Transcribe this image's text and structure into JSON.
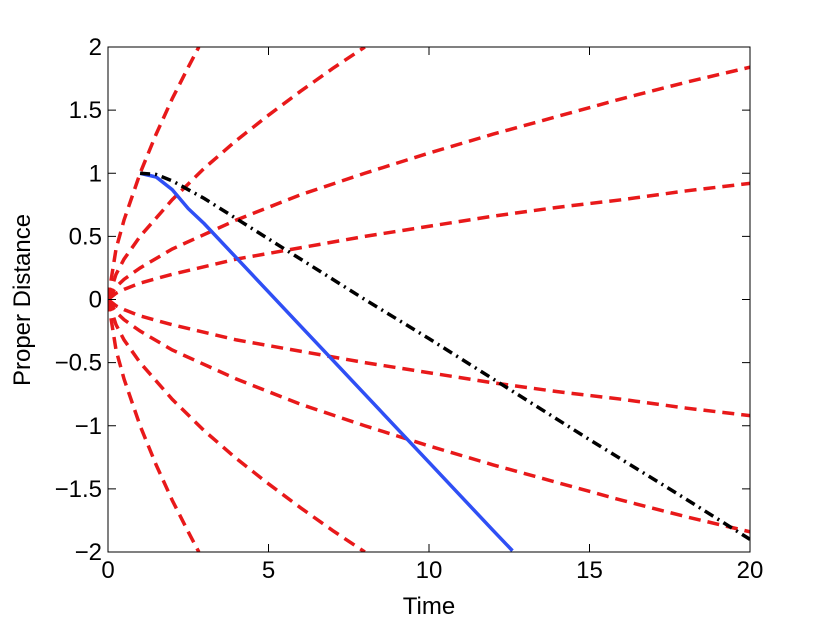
{
  "chart_data": {
    "type": "line",
    "xlabel": "Time",
    "ylabel": "Proper Distance",
    "xlim": [
      0,
      20
    ],
    "ylim": [
      -2,
      2
    ],
    "xticks": [
      0,
      5,
      10,
      15,
      20
    ],
    "yticks": [
      {
        "value": -2,
        "label": "−2"
      },
      {
        "value": -1.5,
        "label": "−1.5"
      },
      {
        "value": -1,
        "label": "−1"
      },
      {
        "value": -0.5,
        "label": "−0.5"
      },
      0,
      0.5,
      1,
      1.5,
      2
    ],
    "series": [
      {
        "color": "#e8191a",
        "dash": "dashed",
        "x": [
          0,
          0.25,
          0.5,
          1,
          1.5,
          2,
          2.5,
          2.83
        ],
        "values": [
          0,
          0.4,
          0.63,
          1,
          1.31,
          1.59,
          1.84,
          2
        ]
      },
      {
        "color": "#e8191a",
        "dash": "dashed",
        "x": [
          0,
          0.25,
          0.5,
          1,
          2,
          3,
          4,
          5,
          6,
          7,
          8
        ],
        "values": [
          0,
          0.2,
          0.32,
          0.5,
          0.79,
          1.04,
          1.26,
          1.46,
          1.65,
          1.83,
          2
        ]
      },
      {
        "color": "#e8191a",
        "dash": "dashed",
        "x": [
          0,
          0.25,
          0.5,
          1,
          2,
          4,
          6,
          8,
          10,
          12,
          14,
          16,
          18,
          20
        ],
        "values": [
          0,
          0.1,
          0.16,
          0.25,
          0.4,
          0.63,
          0.83,
          1.0,
          1.16,
          1.31,
          1.45,
          1.59,
          1.72,
          1.84
        ]
      },
      {
        "color": "#e8191a",
        "dash": "dashed",
        "x": [
          0,
          0.25,
          0.5,
          1,
          2,
          4,
          6,
          8,
          10,
          12,
          14,
          16,
          18,
          20
        ],
        "values": [
          0,
          0.05,
          0.08,
          0.13,
          0.2,
          0.32,
          0.41,
          0.5,
          0.58,
          0.66,
          0.73,
          0.79,
          0.86,
          0.92
        ]
      },
      {
        "color": "#e8191a",
        "dash": "dashed",
        "x": [
          0,
          0.25,
          0.5,
          1,
          2,
          4,
          6,
          8,
          10,
          12,
          14,
          16,
          18,
          20
        ],
        "values": [
          0,
          -0.05,
          -0.08,
          -0.13,
          -0.2,
          -0.32,
          -0.41,
          -0.5,
          -0.58,
          -0.66,
          -0.73,
          -0.79,
          -0.86,
          -0.92
        ]
      },
      {
        "color": "#e8191a",
        "dash": "dashed",
        "x": [
          0,
          0.25,
          0.5,
          1,
          2,
          4,
          6,
          8,
          10,
          12,
          14,
          16,
          18,
          20
        ],
        "values": [
          0,
          -0.1,
          -0.16,
          -0.25,
          -0.4,
          -0.63,
          -0.83,
          -1.0,
          -1.16,
          -1.31,
          -1.45,
          -1.59,
          -1.72,
          -1.84
        ]
      },
      {
        "color": "#e8191a",
        "dash": "dashed",
        "x": [
          0,
          0.25,
          0.5,
          1,
          2,
          3,
          4,
          5,
          6,
          7,
          8
        ],
        "values": [
          0,
          -0.2,
          -0.32,
          -0.5,
          -0.79,
          -1.04,
          -1.26,
          -1.46,
          -1.65,
          -1.83,
          -2
        ]
      },
      {
        "color": "#e8191a",
        "dash": "dashed",
        "x": [
          0,
          0.25,
          0.5,
          1,
          1.5,
          2,
          2.5,
          2.83
        ],
        "values": [
          0,
          -0.4,
          -0.63,
          -1,
          -1.31,
          -1.59,
          -1.84,
          -2
        ]
      },
      {
        "color": "#2f4ff5",
        "dash": "solid",
        "x": [
          1,
          1.5,
          2,
          2.5,
          3,
          4,
          5,
          6,
          7,
          8,
          9,
          10,
          11,
          12,
          12.6
        ],
        "values": [
          1,
          0.97,
          0.87,
          0.72,
          0.6,
          0.33,
          0.06,
          -0.21,
          -0.48,
          -0.75,
          -1.02,
          -1.29,
          -1.56,
          -1.83,
          -1.99
        ]
      },
      {
        "color": "#000000",
        "dash": "dashdot",
        "x": [
          1,
          1.5,
          2,
          2.5,
          3,
          5,
          8,
          10,
          12,
          15,
          18,
          20
        ],
        "values": [
          1,
          0.99,
          0.94,
          0.87,
          0.8,
          0.48,
          0.0,
          -0.31,
          -0.63,
          -1.11,
          -1.58,
          -1.9
        ]
      }
    ]
  }
}
